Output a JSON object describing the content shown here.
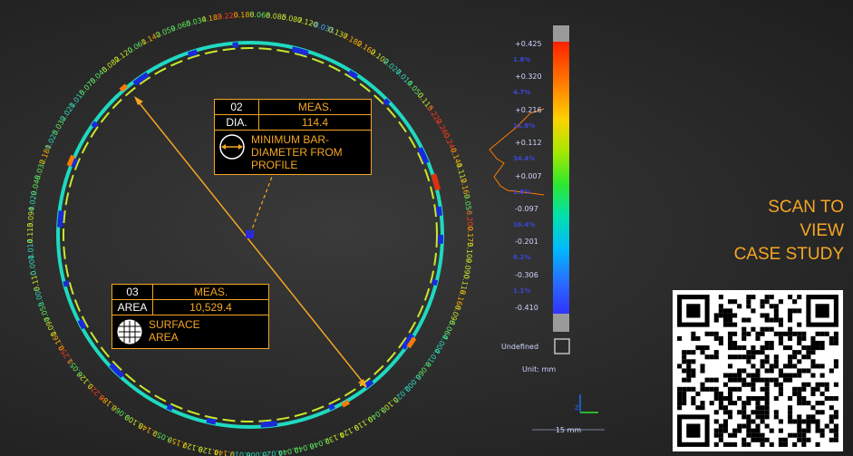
{
  "colors": {
    "accent": "#f5a623",
    "scale": [
      "#ff2a00",
      "#ff7a00",
      "#ffd000",
      "#a8e800",
      "#2ee82e",
      "#00e0b0",
      "#00b8ff",
      "#2a6bff",
      "#2a2aff"
    ]
  },
  "dimension_callout": {
    "number": "02",
    "header": "MEAS.",
    "key": "DIA.",
    "value": "114.4",
    "icon": "diameter-icon",
    "description": "MINIMUM BAR-DIAMETER FROM PROFILE"
  },
  "area_callout": {
    "number": "03",
    "header": "MEAS.",
    "key": "AREA",
    "value": "10,529.4",
    "icon": "grid-area-icon",
    "description": "SURFACE AREA"
  },
  "color_scale": {
    "labels": [
      "+0.425",
      "+0.320",
      "+0.216",
      "+0.112",
      "+0.007",
      "-0.097",
      "-0.201",
      "-0.306",
      "-0.410"
    ],
    "percents": [
      "1.8%",
      "4.7%",
      "11.8%",
      "34.4%",
      "1.8%",
      "16.4%",
      "6.2%",
      "1.1%"
    ],
    "undefined_label": "Undefined",
    "unit_label": "Unit: mm"
  },
  "scale_bar": {
    "label": "15 mm"
  },
  "cta": {
    "line1": "SCAN TO",
    "line2": "VIEW",
    "line3": "CASE STUDY"
  },
  "deviation_labels": [
    "0.183",
    "0.223",
    "0.188",
    "0.068",
    "0.085",
    "0.087",
    "0.120",
    "-0.033",
    "0.137",
    "0.182",
    "0.162",
    "0.102",
    "0.027",
    "0.014",
    "0.050",
    "0.115",
    "0.222",
    "0.260",
    "0.246",
    "0.144",
    "0.112",
    "0.169",
    "0.056",
    "0.209",
    "0.175",
    "0.109",
    "0.090",
    "0.118",
    "0.168",
    "0.096",
    "0.064",
    "0.004",
    "0.018",
    "0.066",
    "0.002",
    "0.025",
    "0.103",
    "0.049",
    "0.119",
    "0.124",
    "0.132",
    "0.046",
    "0.042",
    "0.044",
    "0.025",
    "0.006",
    "0.019",
    "0.144",
    "0.128",
    "0.127",
    "0.153",
    "0.052",
    "0.148",
    "0.109",
    "0.066",
    "0.186",
    "0.223",
    "0.126",
    "0.051",
    "0.258",
    "0.161",
    "0.097",
    "0.053",
    "0.005",
    "0.110",
    "0.001",
    "0.014",
    "0.113",
    "0.094",
    "0.029",
    "0.048",
    "0.032",
    "0.181",
    "0.025",
    "0.032",
    "0.021",
    "0.015",
    "0.075",
    "0.045",
    "0.082",
    "0.120",
    "0.061",
    "0.142",
    "0.059",
    "0.065",
    "0.034"
  ]
}
